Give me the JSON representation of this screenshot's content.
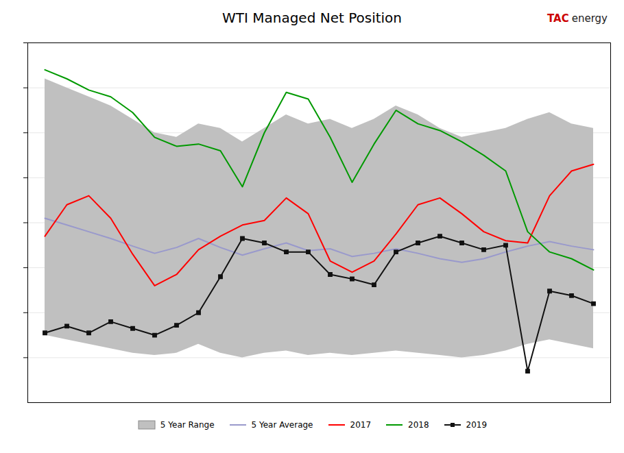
{
  "chart_data": {
    "type": "line",
    "title": "WTI Managed Net Position",
    "annotations": [
      {
        "text": "TAC",
        "color": "#cc0000"
      },
      {
        "text": "energy",
        "color": "#222222"
      }
    ],
    "categories": [
      null,
      null,
      null,
      null,
      null,
      null,
      null,
      null,
      null,
      null,
      null,
      null,
      null,
      null,
      null,
      null,
      null,
      null,
      null,
      null,
      null,
      null,
      null,
      null,
      null,
      null
    ],
    "series": [
      {
        "name": "5 Year Range",
        "type": "band",
        "color": "#c0c0c0",
        "lower": [
          50,
          40,
          30,
          20,
          10,
          5,
          10,
          30,
          10,
          0,
          10,
          15,
          5,
          10,
          5,
          10,
          15,
          10,
          5,
          0,
          5,
          15,
          30,
          40,
          30,
          20
        ],
        "upper": [
          620,
          600,
          580,
          560,
          530,
          500,
          490,
          520,
          510,
          480,
          510,
          540,
          520,
          530,
          510,
          530,
          560,
          540,
          510,
          490,
          500,
          510,
          530,
          545,
          520,
          510
        ]
      },
      {
        "name": "5 Year Average",
        "color": "#9999cc",
        "values": [
          310,
          295,
          280,
          265,
          248,
          232,
          245,
          265,
          245,
          228,
          242,
          255,
          238,
          242,
          225,
          232,
          242,
          232,
          220,
          212,
          220,
          235,
          248,
          258,
          248,
          240
        ]
      },
      {
        "name": "2017",
        "color": "#ff0000",
        "values": [
          270,
          340,
          360,
          310,
          230,
          160,
          185,
          240,
          270,
          295,
          305,
          355,
          320,
          215,
          190,
          215,
          275,
          340,
          355,
          320,
          280,
          260,
          255,
          360,
          415,
          430
        ]
      },
      {
        "name": "2018",
        "color": "#009900",
        "values": [
          640,
          620,
          595,
          580,
          545,
          490,
          470,
          475,
          460,
          380,
          500,
          590,
          575,
          490,
          390,
          475,
          550,
          520,
          505,
          480,
          450,
          415,
          280,
          235,
          220,
          195
        ]
      },
      {
        "name": "2019",
        "color": "#111111",
        "marker": "square",
        "values": [
          55,
          70,
          55,
          80,
          65,
          50,
          72,
          100,
          180,
          265,
          255,
          235,
          235,
          185,
          175,
          162,
          235,
          255,
          270,
          255,
          240,
          250,
          -30,
          148,
          138,
          120
        ]
      }
    ],
    "ylim": [
      -100,
      700
    ],
    "yticks": [
      0,
      100,
      200,
      300,
      400,
      500,
      600,
      700
    ],
    "grid": true,
    "tick_labels": false,
    "legend": "bottom"
  }
}
